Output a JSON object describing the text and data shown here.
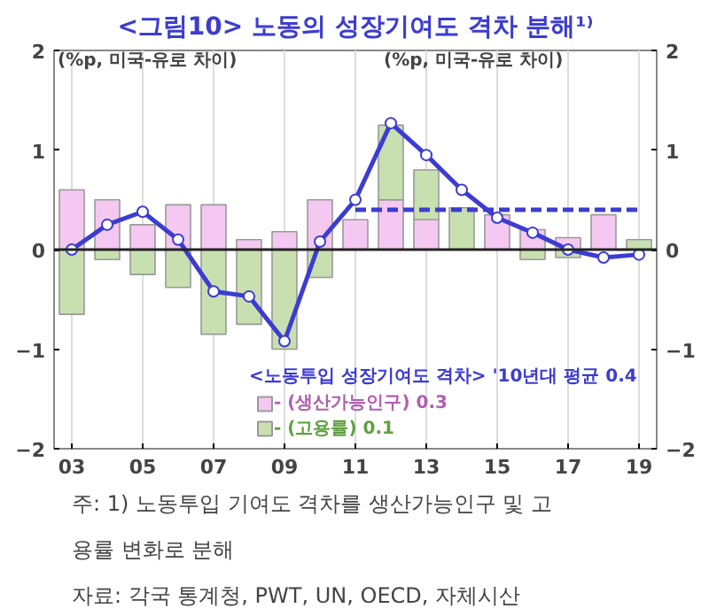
{
  "chart_data": {
    "type": "bar",
    "stacked": true,
    "title": "<그림10> 노동의 성장기여도 격차 분해¹⁾",
    "ylabel": "(%p, 미국-유로 차이)",
    "y2label": "(%p, 미국-유로 차이)",
    "categories": [
      "03",
      null,
      "05",
      null,
      "07",
      null,
      "09",
      null,
      "11",
      null,
      "13",
      null,
      "15",
      null,
      "17",
      null,
      "19"
    ],
    "series": [
      {
        "name": "- (생산가능인구) 0.3",
        "color": "#f4c8f0",
        "values": [
          0.6,
          0.5,
          0.25,
          0.45,
          0.45,
          0.1,
          0.18,
          0.5,
          0.3,
          0.5,
          0.3,
          null,
          0.35,
          0.2,
          0.12,
          0.35,
          null
        ]
      },
      {
        "name": "- (고용률) 0.1",
        "color": "#c8e0b0",
        "values": [
          -0.65,
          -0.1,
          -0.25,
          -0.38,
          -0.85,
          -0.75,
          -1.0,
          -0.28,
          null,
          0.75,
          0.5,
          0.42,
          null,
          -0.1,
          -0.08,
          null,
          0.1
        ]
      },
      {
        "name": "<노동투입 성장기여도 격차> '10년대 평균 0.4",
        "type": "line",
        "color": "#3c3cd2",
        "marker": "circle",
        "values": [
          0.0,
          0.25,
          0.38,
          0.1,
          -0.42,
          -0.47,
          -0.92,
          0.08,
          0.5,
          1.27,
          0.95,
          0.6,
          0.32,
          0.17,
          0.0,
          -0.08,
          -0.05
        ]
      },
      {
        "type": "line",
        "color": "#3c3cd2",
        "line_style": "dashed",
        "values": [
          null,
          null,
          null,
          null,
          null,
          null,
          null,
          null,
          0.4,
          0.4,
          0.4,
          0.4,
          0.4,
          0.4,
          0.4,
          0.4,
          0.4
        ]
      }
    ],
    "ylim": [
      -2,
      2
    ],
    "yticks": [
      -2,
      -1,
      0,
      1,
      2
    ],
    "y2lim": [
      -2,
      2
    ],
    "y2ticks": [
      -2,
      -1,
      0,
      1,
      2
    ],
    "grid": "x",
    "legend": "bottom",
    "annotations": [
      "주: 1) 노동투입 기여도 격차를 생산가능인구 및 고",
      "용률 변화로 분해",
      "자료: 각국 통계청, PWT, UN, OECD, 자체시산"
    ]
  }
}
